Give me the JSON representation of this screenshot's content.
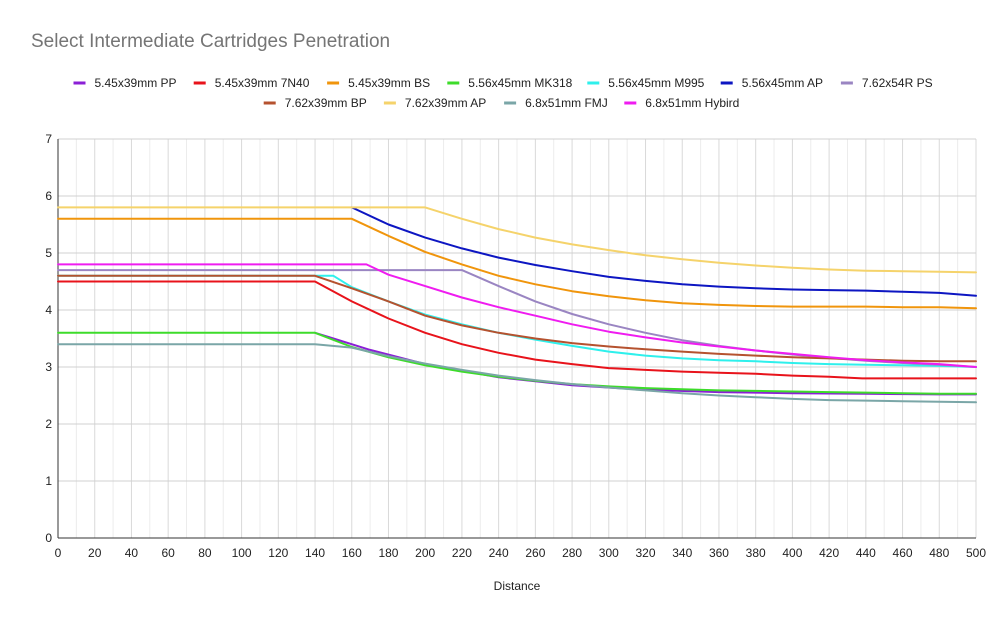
{
  "chart_data": {
    "type": "line",
    "title": "Select Intermediate Cartridges Penetration",
    "xlabel": "Distance",
    "ylabel": "",
    "xlim": [
      0,
      500
    ],
    "ylim": [
      0,
      7
    ],
    "xticks": [
      0,
      20,
      40,
      60,
      80,
      100,
      120,
      140,
      160,
      180,
      200,
      220,
      240,
      260,
      280,
      300,
      320,
      340,
      360,
      380,
      400,
      420,
      440,
      460,
      480,
      500
    ],
    "yticks": [
      0,
      1,
      2,
      3,
      4,
      5,
      6,
      7
    ],
    "grid": true,
    "legend_position": "top",
    "series": [
      {
        "name": "5.45x39mm PP",
        "color": "#8b1fd6",
        "x": [
          140,
          150,
          170,
          200,
          240,
          280,
          320,
          360,
          400,
          440,
          480,
          500
        ],
        "y": [
          3.6,
          3.5,
          3.3,
          3.05,
          2.82,
          2.68,
          2.6,
          2.56,
          2.54,
          2.53,
          2.52,
          2.52
        ]
      },
      {
        "name": "5.45x39mm 7N40",
        "color": "#e8131b",
        "x": [
          0,
          140,
          160,
          180,
          200,
          220,
          240,
          260,
          280,
          300,
          320,
          340,
          360,
          380,
          400,
          420,
          438,
          440,
          460,
          500
        ],
        "y": [
          4.5,
          4.5,
          4.15,
          3.85,
          3.6,
          3.4,
          3.25,
          3.13,
          3.05,
          2.98,
          2.95,
          2.92,
          2.9,
          2.88,
          2.85,
          2.83,
          2.8,
          2.8,
          2.8,
          2.8
        ]
      },
      {
        "name": "5.45x39mm BS",
        "color": "#f0950c",
        "x": [
          0,
          160,
          180,
          200,
          220,
          240,
          260,
          280,
          300,
          320,
          340,
          360,
          380,
          400,
          420,
          440,
          460,
          480,
          500
        ],
        "y": [
          5.6,
          5.6,
          5.3,
          5.02,
          4.8,
          4.6,
          4.45,
          4.33,
          4.24,
          4.17,
          4.12,
          4.09,
          4.07,
          4.06,
          4.06,
          4.06,
          4.05,
          4.05,
          4.03
        ]
      },
      {
        "name": "5.56x45mm MK318",
        "color": "#3ddc2a",
        "x": [
          0,
          140,
          160,
          180,
          200,
          220,
          240,
          260,
          280,
          300,
          320,
          340,
          360,
          380,
          400,
          420,
          440,
          460,
          480,
          500
        ],
        "y": [
          3.6,
          3.6,
          3.35,
          3.17,
          3.03,
          2.92,
          2.83,
          2.76,
          2.7,
          2.66,
          2.63,
          2.61,
          2.59,
          2.58,
          2.57,
          2.56,
          2.55,
          2.54,
          2.53,
          2.53
        ]
      },
      {
        "name": "5.56x45mm M995",
        "color": "#2ef0ec",
        "x": [
          0,
          150,
          160,
          180,
          200,
          220,
          240,
          260,
          280,
          300,
          320,
          340,
          360,
          380,
          400,
          420,
          440,
          460,
          480,
          500
        ],
        "y": [
          4.6,
          4.6,
          4.4,
          4.15,
          3.92,
          3.75,
          3.6,
          3.48,
          3.37,
          3.27,
          3.2,
          3.15,
          3.12,
          3.1,
          3.07,
          3.05,
          3.04,
          3.03,
          3.02,
          3.0
        ]
      },
      {
        "name": "5.56x45mm AP",
        "color": "#0d16c2",
        "x": [
          160,
          180,
          200,
          220,
          240,
          260,
          280,
          300,
          320,
          340,
          360,
          380,
          400,
          420,
          440,
          460,
          480,
          500
        ],
        "y": [
          5.8,
          5.5,
          5.27,
          5.08,
          4.92,
          4.79,
          4.68,
          4.58,
          4.51,
          4.45,
          4.41,
          4.38,
          4.36,
          4.35,
          4.34,
          4.32,
          4.3,
          4.25
        ]
      },
      {
        "name": "7.62x54R PS",
        "color": "#9a85c2",
        "x": [
          0,
          220,
          240,
          260,
          280,
          300,
          320,
          340,
          360,
          380,
          400,
          420,
          440,
          460,
          480,
          500
        ],
        "y": [
          4.7,
          4.7,
          4.42,
          4.15,
          3.93,
          3.75,
          3.6,
          3.47,
          3.37,
          3.29,
          3.22,
          3.16,
          3.11,
          3.07,
          3.04,
          3.0
        ]
      },
      {
        "name": "7.62x39mm BP",
        "color": "#b5522f",
        "x": [
          0,
          140,
          160,
          180,
          200,
          220,
          240,
          260,
          280,
          300,
          320,
          340,
          360,
          380,
          400,
          420,
          440,
          460,
          480,
          500
        ],
        "y": [
          4.6,
          4.6,
          4.38,
          4.15,
          3.9,
          3.73,
          3.6,
          3.5,
          3.42,
          3.36,
          3.31,
          3.27,
          3.23,
          3.2,
          3.17,
          3.15,
          3.13,
          3.11,
          3.1,
          3.1
        ]
      },
      {
        "name": "7.62x39mm AP",
        "color": "#f5d36b",
        "x": [
          0,
          200,
          220,
          240,
          260,
          280,
          300,
          320,
          340,
          360,
          380,
          400,
          420,
          440,
          460,
          480,
          500
        ],
        "y": [
          5.8,
          5.8,
          5.6,
          5.42,
          5.27,
          5.15,
          5.05,
          4.96,
          4.89,
          4.83,
          4.78,
          4.74,
          4.71,
          4.69,
          4.68,
          4.67,
          4.66
        ]
      },
      {
        "name": "6.8x51mm FMJ",
        "color": "#7aa6a7",
        "x": [
          0,
          140,
          160,
          180,
          200,
          220,
          240,
          260,
          280,
          300,
          320,
          340,
          360,
          380,
          400,
          420,
          440,
          460,
          480,
          500
        ],
        "y": [
          3.4,
          3.4,
          3.34,
          3.19,
          3.06,
          2.95,
          2.85,
          2.77,
          2.7,
          2.64,
          2.59,
          2.54,
          2.5,
          2.47,
          2.44,
          2.42,
          2.41,
          2.4,
          2.39,
          2.38
        ]
      },
      {
        "name": "6.8x51mm Hybird",
        "color": "#ef1cf0",
        "x": [
          0,
          168,
          180,
          200,
          220,
          240,
          260,
          280,
          300,
          320,
          340,
          360,
          380,
          400,
          420,
          440,
          460,
          480,
          500
        ],
        "y": [
          4.8,
          4.8,
          4.62,
          4.42,
          4.22,
          4.05,
          3.9,
          3.75,
          3.62,
          3.52,
          3.43,
          3.36,
          3.29,
          3.23,
          3.17,
          3.12,
          3.08,
          3.05,
          3.0
        ]
      }
    ]
  }
}
